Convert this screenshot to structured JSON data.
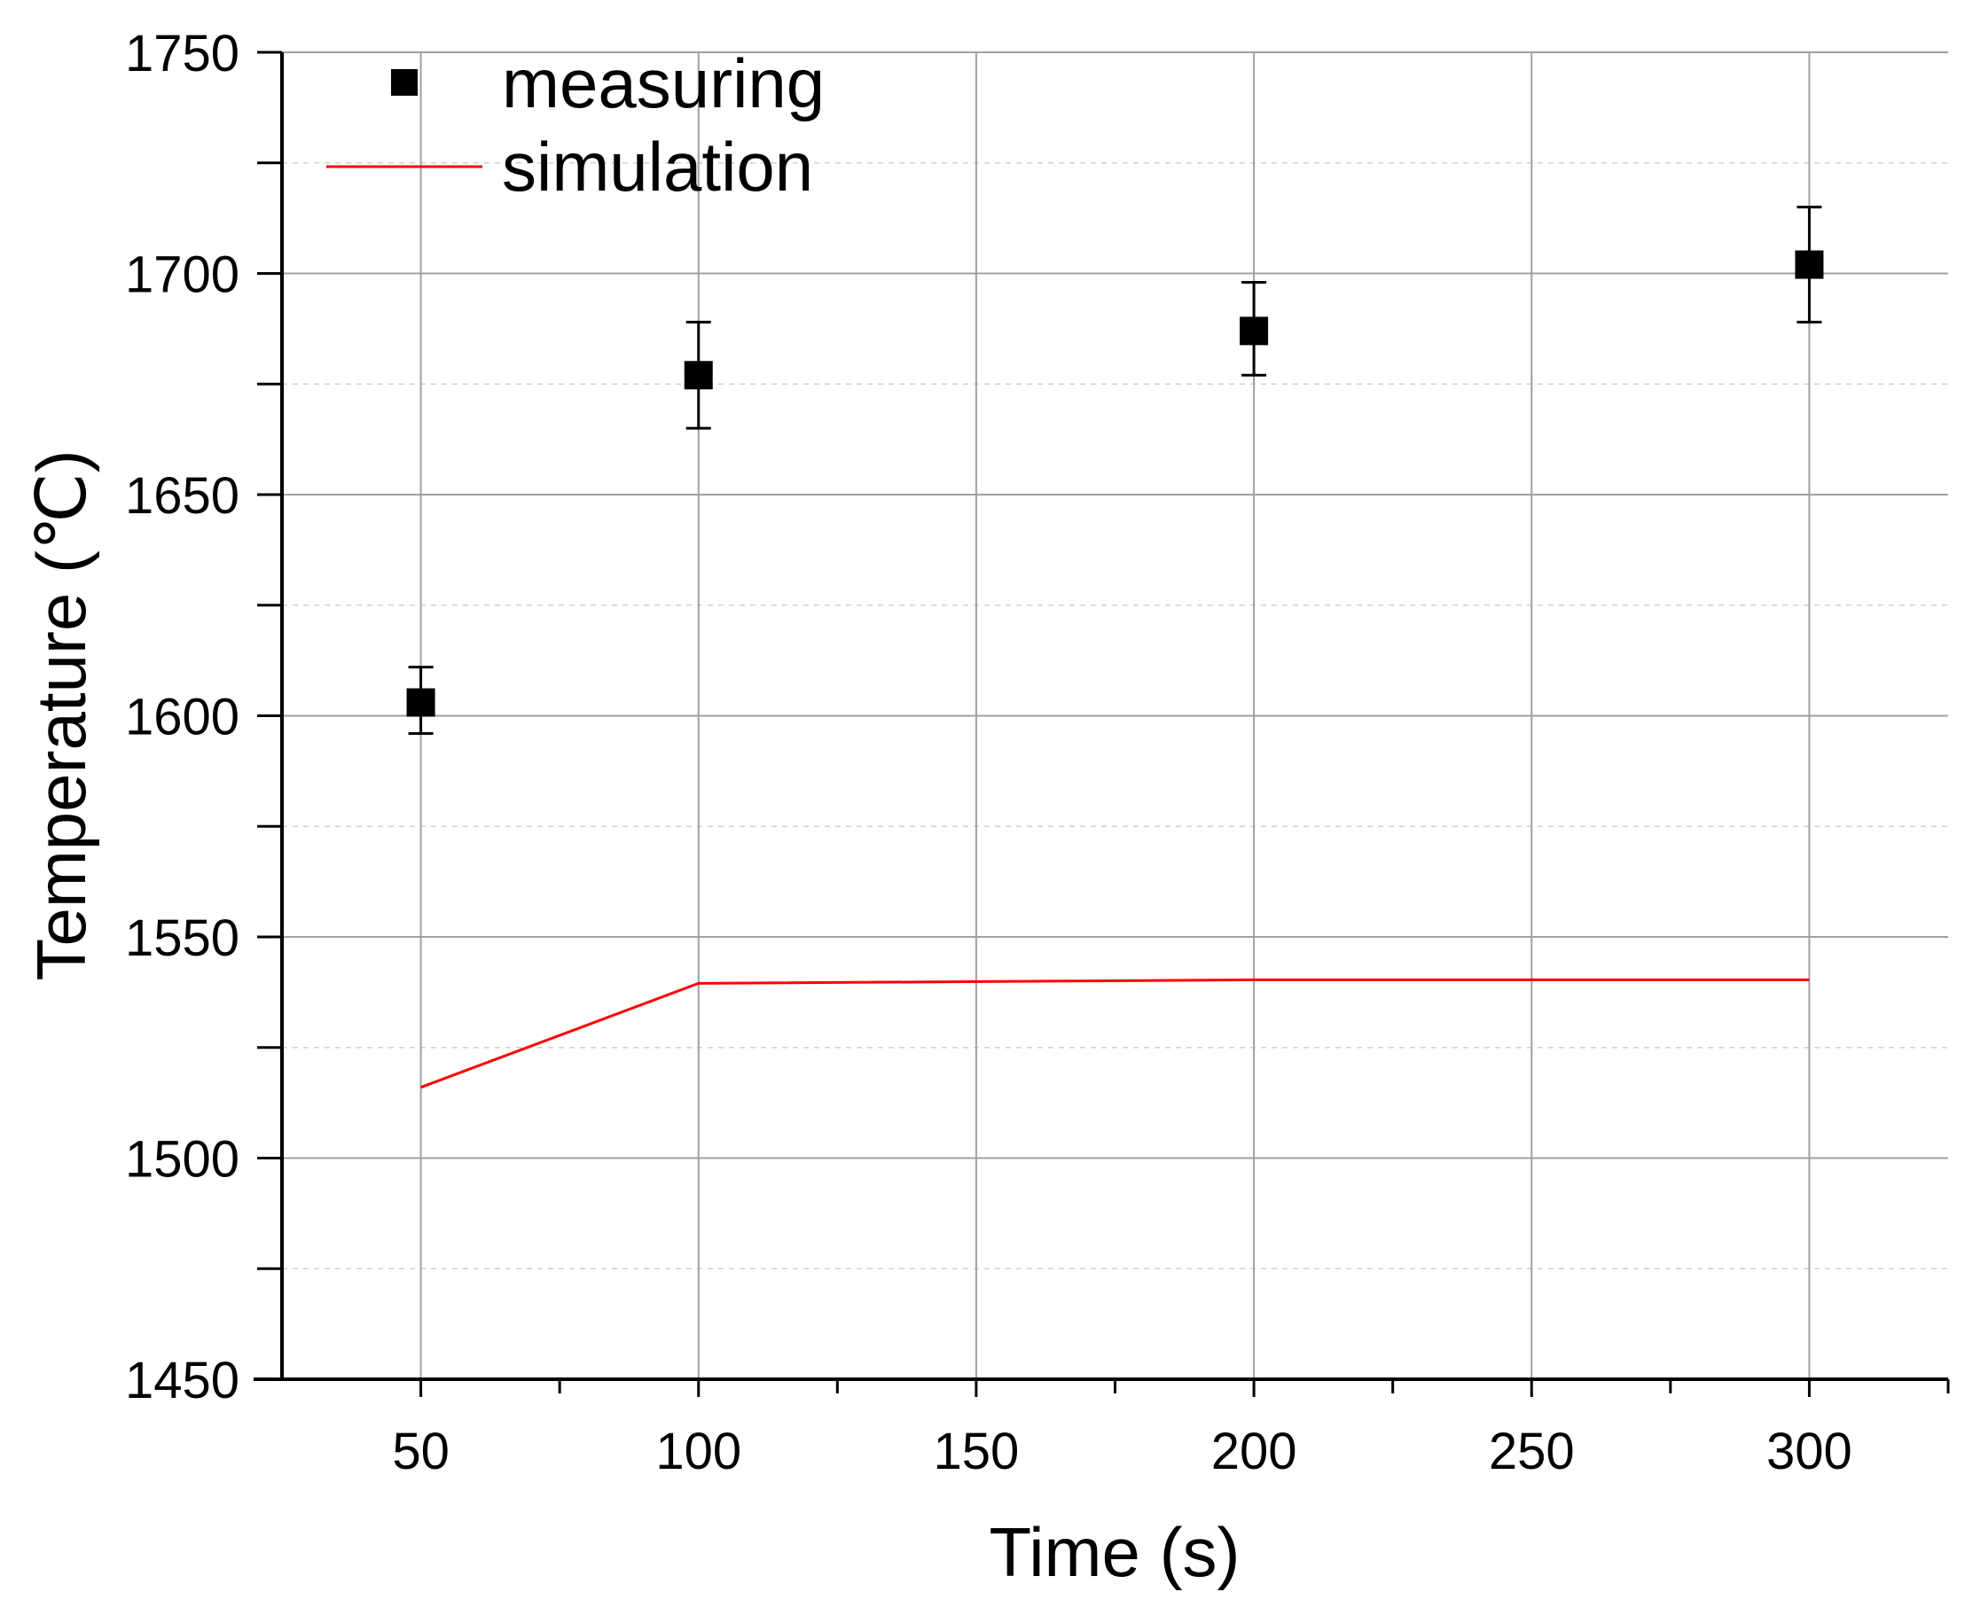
{
  "chart_data": {
    "type": "scatter",
    "xlabel": "Time (s)",
    "ylabel": "Temperature (℃)",
    "xlim": [
      25,
      325
    ],
    "ylim": [
      1450,
      1750
    ],
    "x_ticks": [
      50,
      100,
      150,
      200,
      250,
      300
    ],
    "x_tick_labels": [
      "50",
      "100",
      "150",
      "200",
      "250",
      "300"
    ],
    "y_ticks": [
      1450,
      1500,
      1550,
      1600,
      1650,
      1700,
      1750
    ],
    "y_tick_labels": [
      "1450",
      "1500",
      "1550",
      "1600",
      "1650",
      "1700",
      "1750"
    ],
    "x_minor_ticks": [
      75,
      125,
      175,
      225,
      275,
      325
    ],
    "y_minor_ticks": [
      1475,
      1525,
      1575,
      1625,
      1675,
      1725
    ],
    "grid": true,
    "legend_position": "top-left",
    "series": [
      {
        "name": "measuring",
        "kind": "scatter",
        "marker": "square",
        "color": "#000000",
        "x": [
          50,
          100,
          200,
          300
        ],
        "y": [
          1603,
          1677,
          1687,
          1702
        ],
        "error_high": [
          1611,
          1689,
          1698,
          1715
        ],
        "error_low": [
          1596,
          1665,
          1677,
          1689
        ]
      },
      {
        "name": "simulation",
        "kind": "line",
        "color": "#ff0000",
        "x": [
          50,
          100,
          200,
          300
        ],
        "y": [
          1516,
          1539.5,
          1540.3,
          1540.3
        ]
      }
    ]
  }
}
